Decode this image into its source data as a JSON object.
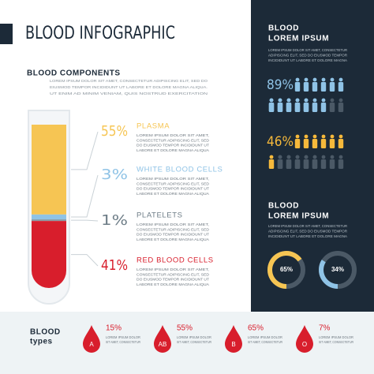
{
  "title": "BLOOD INFOGRAPHIC",
  "components": {
    "heading": "BLOOD COMPONENTS",
    "intro_lines": [
      "LOREM IPSUM DOLOR SIT AMET, CONSECTETUR ADIPISCING ELIT, SED DO",
      "EIUSMOD TEMPOR INCIDIDUNT UT LABORE ET DOLORE MAGNA ALIQUA.",
      "UT ENIM AD MINIM VENIAM, QUIS NOSTRUD EXERCITATION"
    ],
    "items": [
      {
        "name": "PLASMA",
        "value": 55,
        "label": "55%",
        "color": "#f6c553",
        "text_lines": [
          "LOREM IPSUM DOLOR SIT AMET,",
          "CONSECTETUR ADIPISCING ELIT, SED",
          "DO EIUSMOD TEMPOR INCIDIDUNT UT",
          "LABORE ET DOLORE MAGNA ALIQUA"
        ]
      },
      {
        "name": "WHITE BLOOD CELLS",
        "value": 3,
        "label": "3%",
        "color": "#8fc3e6",
        "text_lines": [
          "LOREM IPSUM DOLOR SIT AMET,",
          "CONSECTETUR ADIPISCING ELIT, SED",
          "DO EIUSMOD TEMPOR INCIDIDUNT UT",
          "LABORE ET DOLORE MAGNA ALIQUA"
        ]
      },
      {
        "name": "PLATELETS",
        "value": 1,
        "label": "1%",
        "color": "#8a9aa4",
        "text_lines": [
          "LOREM IPSUM DOLOR SIT AMET,",
          "CONSECTETUR ADIPISCING ELIT, SED",
          "DO EIUSMOD TEMPOR INCIDIDUNT UT",
          "LABORE ET DOLORE MAGNA ALIQUA"
        ]
      },
      {
        "name": "RED BLOOD CELLS",
        "value": 41,
        "label": "41%",
        "color": "#d81e2c",
        "text_lines": [
          "LOREM IPSUM DOLOR SIT AMET,",
          "CONSECTETUR ADIPISCING ELIT, SED",
          "DO EIUSMOD TEMPOR INCIDIDUNT UT",
          "LABORE ET DOLORE MAGNA ALIQUA"
        ]
      }
    ]
  },
  "panel_top": {
    "heading_lines": [
      "BLOOD",
      "LOREM IPSUM"
    ],
    "text_lines": [
      "LOREM IPSUM DOLOR SIT AMET, CONSECTETUR",
      "ADIPISCING ELIT, SED DO EIUSMOD TEMPOR",
      "INCIDIDUNT UT LABORE ET DOLORE MAGNA"
    ],
    "stats": [
      {
        "value": 89,
        "label": "89%",
        "color": "#8fc3e6"
      },
      {
        "value": 46,
        "label": "46%",
        "color": "#f6b93b"
      }
    ]
  },
  "panel_bottom": {
    "heading_lines": [
      "BLOOD",
      "LOREM IPSUM"
    ],
    "text_lines": [
      "LOREM IPSUM DOLOR SIT AMET, CONSECTETUR",
      "ADIPISCING ELIT, SED DO EIUSMOD TEMPOR",
      "INCIDIDUNT UT LABORE ET DOLORE MAGNA"
    ],
    "donuts": [
      {
        "value": 65,
        "label": "65%",
        "color": "#f6c553"
      },
      {
        "value": 34,
        "label": "34%",
        "color": "#8fc3e6"
      }
    ]
  },
  "types": {
    "heading_lines": [
      "BLOOD",
      "types"
    ],
    "items": [
      {
        "letter": "A",
        "value": 15,
        "label": "15%",
        "text_lines": [
          "LOREM IPSUM DOLOR",
          "SIT AMET, CONSECTETUR"
        ]
      },
      {
        "letter": "AB",
        "value": 55,
        "label": "55%",
        "text_lines": [
          "LOREM IPSUM DOLOR",
          "SIT AMET, CONSECTETUR"
        ]
      },
      {
        "letter": "B",
        "value": 65,
        "label": "65%",
        "text_lines": [
          "LOREM IPSUM DOLOR",
          "SIT AMET, CONSECTETUR"
        ]
      },
      {
        "letter": "O",
        "value": 7,
        "label": "7%",
        "text_lines": [
          "LOREM IPSUM DOLOR",
          "SIT AMET, CONSECTETUR"
        ]
      }
    ]
  }
}
